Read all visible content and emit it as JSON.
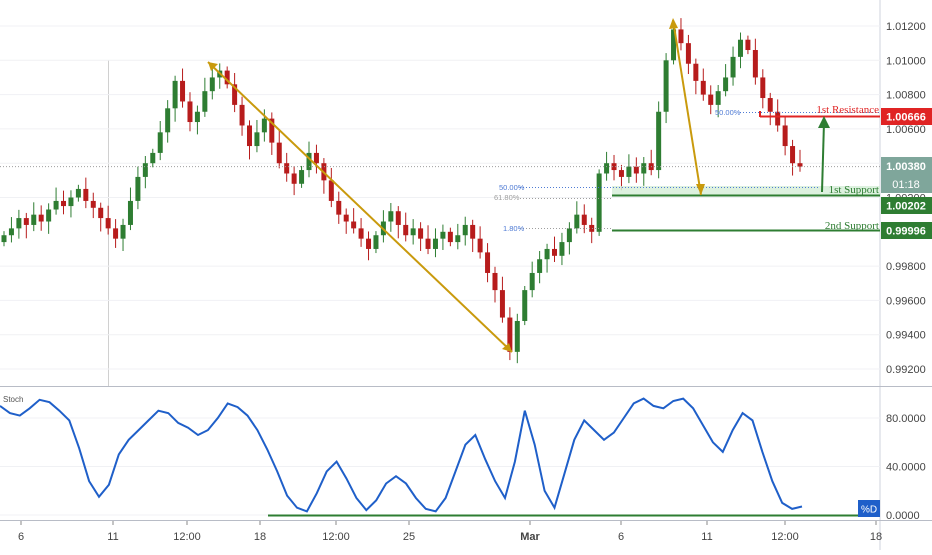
{
  "chart_data": {
    "type": "candlestick",
    "instrument_axis": {
      "ylim": [
        0.991,
        1.013
      ],
      "ticks": [
        "1.01200",
        "1.01000",
        "1.00800",
        "1.00600",
        "1.00400",
        "1.00200",
        "0.99800",
        "0.99600",
        "0.99400",
        "0.99200"
      ],
      "tick_values": [
        1.012,
        1.01,
        1.008,
        1.006,
        1.004,
        1.002,
        0.998,
        0.996,
        0.994,
        0.992
      ]
    },
    "x_ticks": [
      "6",
      "11",
      "12:00",
      "18",
      "12:00",
      "25",
      "Mar",
      "6",
      "11",
      "12:00",
      "18"
    ],
    "price_labels": {
      "resistance_value": "1.00666",
      "current_value": "1.00380",
      "countdown": "01:18",
      "support1_value": "1.00202",
      "support2_value": "0.99996"
    },
    "levels": [
      {
        "label": "1st Resistance",
        "value": 1.00666,
        "color": "#e02424"
      },
      {
        "label": "1st Support",
        "value": 1.00202,
        "color": "#2e7d32"
      },
      {
        "label": "2nd Support",
        "value": 0.99996,
        "color": "#2e7d32"
      }
    ],
    "fib_labels": {
      "a": "50.00%",
      "b": "50.00%",
      "c": "61.80%",
      "d": "1.80%"
    },
    "current_price": 1.0038,
    "candles_close": [
      0.9998,
      1.0002,
      1.0008,
      1.0004,
      1.001,
      1.0006,
      1.0013,
      1.0018,
      1.0015,
      1.002,
      1.0025,
      1.0018,
      1.0014,
      1.0008,
      1.0002,
      0.9996,
      1.0004,
      1.0018,
      1.0032,
      1.004,
      1.0046,
      1.0058,
      1.0072,
      1.0088,
      1.0076,
      1.0064,
      1.007,
      1.0082,
      1.009,
      1.0094,
      1.0086,
      1.0074,
      1.0062,
      1.005,
      1.0058,
      1.0066,
      1.0052,
      1.004,
      1.0034,
      1.0028,
      1.0036,
      1.0046,
      1.004,
      1.003,
      1.0018,
      1.001,
      1.0006,
      1.0002,
      0.9996,
      0.999,
      0.9998,
      1.0006,
      1.0012,
      1.0004,
      0.9998,
      1.0002,
      0.9996,
      0.999,
      0.9996,
      1.0,
      0.9994,
      0.9998,
      1.0004,
      0.9996,
      0.9988,
      0.9976,
      0.9966,
      0.995,
      0.993,
      0.9948,
      0.9966,
      0.9976,
      0.9984,
      0.999,
      0.9986,
      0.9994,
      1.0002,
      1.001,
      1.0004,
      1.0,
      1.0034,
      1.004,
      1.0036,
      1.0032,
      1.0038,
      1.0034,
      1.004,
      1.0036,
      1.007,
      1.01,
      1.0118,
      1.011,
      1.0098,
      1.0088,
      1.008,
      1.0074,
      1.0082,
      1.009,
      1.0102,
      1.0112,
      1.0106,
      1.009,
      1.0078,
      1.007,
      1.0062,
      1.005,
      1.004,
      1.0038
    ],
    "stoch_axis": {
      "ylim": [
        0,
        100
      ],
      "ticks": [
        "80.0000",
        "40.0000",
        "0.0000"
      ],
      "tick_values": [
        80,
        40,
        0
      ],
      "indicator_label": "%D",
      "title": "Stoch"
    },
    "stoch_d": [
      90,
      84,
      82,
      88,
      95,
      93,
      86,
      78,
      55,
      28,
      15,
      25,
      50,
      62,
      70,
      78,
      86,
      84,
      76,
      72,
      66,
      70,
      80,
      92,
      89,
      82,
      70,
      54,
      36,
      16,
      6,
      3,
      18,
      36,
      44,
      30,
      14,
      4,
      12,
      26,
      32,
      26,
      14,
      5,
      3,
      14,
      36,
      58,
      66,
      46,
      28,
      14,
      44,
      86,
      58,
      20,
      6,
      34,
      62,
      78,
      70,
      62,
      68,
      80,
      92,
      96,
      90,
      88,
      94,
      96,
      88,
      74,
      60,
      52,
      70,
      84,
      78,
      52,
      28,
      10,
      5,
      7
    ]
  }
}
